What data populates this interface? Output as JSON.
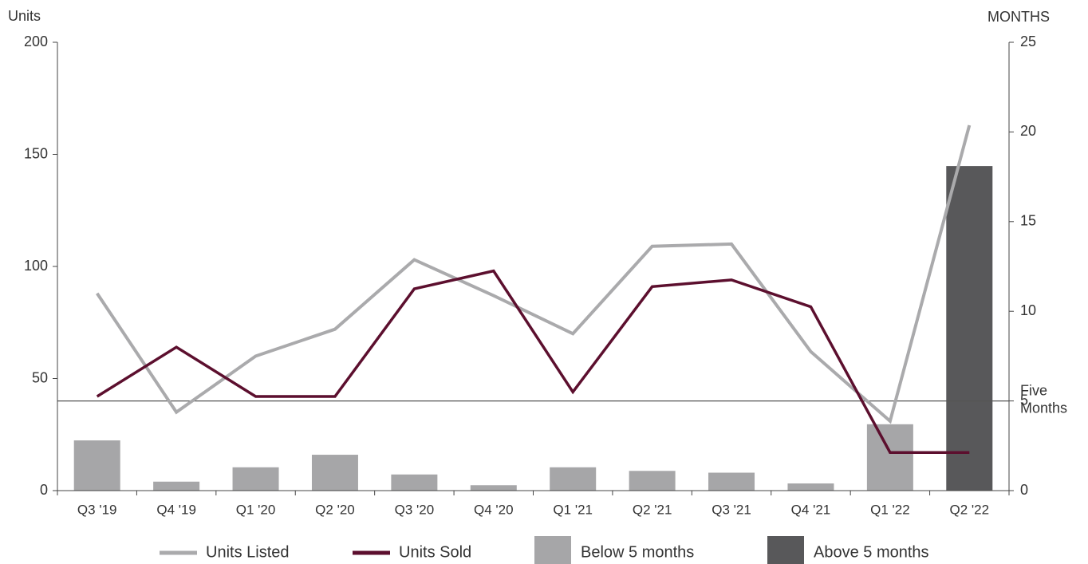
{
  "chart_data": {
    "type": "combo",
    "y_label": "Units",
    "y2_label": "MONTHS",
    "categories": [
      "Q3 '19",
      "Q4 '19",
      "Q1 '20",
      "Q2 '20",
      "Q3 '20",
      "Q4 '20",
      "Q1 '21",
      "Q2 '21",
      "Q3 '21",
      "Q4 '21",
      "Q1 '22",
      "Q2 '22"
    ],
    "series": [
      {
        "name": "Units Listed",
        "type": "line",
        "color": "#aaaaac",
        "values": [
          88,
          35,
          60,
          72,
          103,
          87,
          70,
          109,
          110,
          62,
          31,
          163
        ]
      },
      {
        "name": "Units Sold",
        "type": "line",
        "color": "#5c0f2e",
        "values": [
          42,
          64,
          42,
          42,
          90,
          98,
          44,
          91,
          94,
          82,
          17,
          17
        ]
      },
      {
        "name": "Below 5 months",
        "type": "bar",
        "axis": "y2",
        "color": "#a6a6a8",
        "values": [
          2.8,
          0.5,
          1.3,
          2.0,
          0.9,
          0.3,
          1.3,
          1.1,
          1.0,
          0.4,
          3.7,
          null
        ]
      },
      {
        "name": "Above 5 months",
        "type": "bar",
        "axis": "y2",
        "color": "#58585a",
        "values": [
          null,
          null,
          null,
          null,
          null,
          null,
          null,
          null,
          null,
          null,
          null,
          18.1
        ]
      }
    ],
    "ylim": [
      0,
      200
    ],
    "yticks": [
      0,
      50,
      100,
      150,
      200
    ],
    "y2lim": [
      0,
      25
    ],
    "y2ticks": [
      0,
      5,
      10,
      15,
      20,
      25
    ],
    "reference_line": {
      "value": 5,
      "axis": "y2",
      "label": "Five Months"
    },
    "legend": "bottom"
  }
}
